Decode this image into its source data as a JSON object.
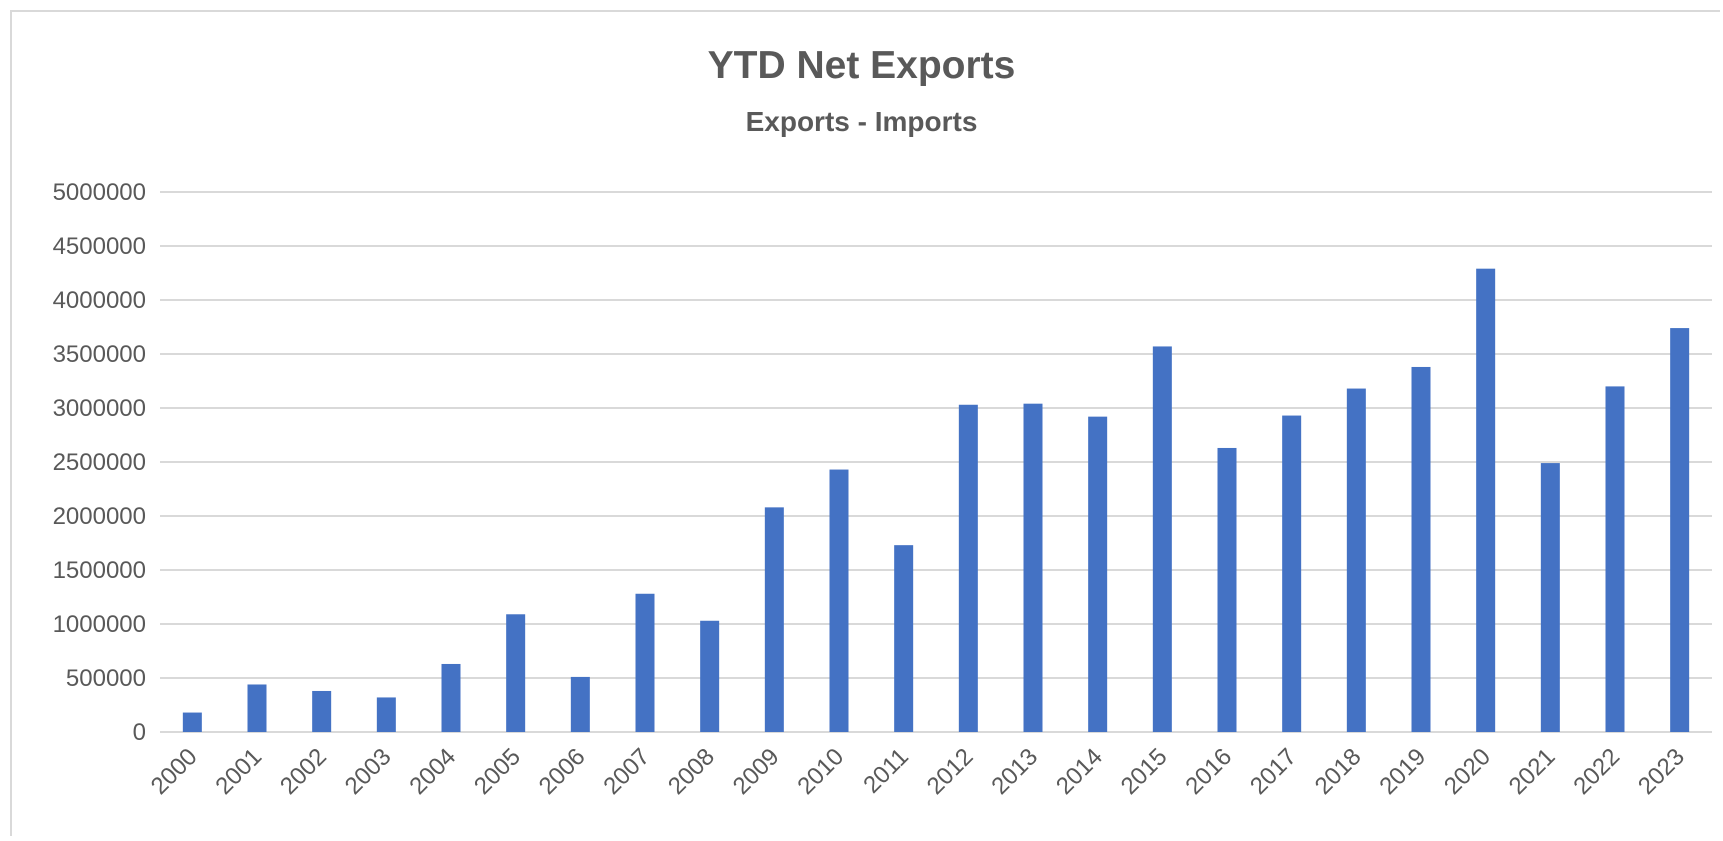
{
  "chart_data": {
    "type": "bar",
    "title": "YTD Net Exports",
    "subtitle": "Exports - Imports",
    "xlabel": "",
    "ylabel": "",
    "categories": [
      "2000",
      "2001",
      "2002",
      "2003",
      "2004",
      "2005",
      "2006",
      "2007",
      "2008",
      "2009",
      "2010",
      "2011",
      "2012",
      "2013",
      "2014",
      "2015",
      "2016",
      "2017",
      "2018",
      "2019",
      "2020",
      "2021",
      "2022",
      "2023"
    ],
    "values": [
      180000,
      440000,
      380000,
      320000,
      630000,
      1090000,
      510000,
      1280000,
      1030000,
      2080000,
      2430000,
      1730000,
      3030000,
      3040000,
      2920000,
      3570000,
      2630000,
      2930000,
      3180000,
      3380000,
      4290000,
      2490000,
      3200000,
      3740000
    ],
    "ylim": [
      0,
      5000000
    ],
    "yticks": [
      "0",
      "500000",
      "1000000",
      "1500000",
      "2000000",
      "2500000",
      "3000000",
      "3500000",
      "4000000",
      "4500000",
      "5000000"
    ],
    "grid": true,
    "legend": "none",
    "colors": {
      "bar": "#4472c4",
      "grid": "#d9d9d9",
      "text": "#595959"
    }
  }
}
